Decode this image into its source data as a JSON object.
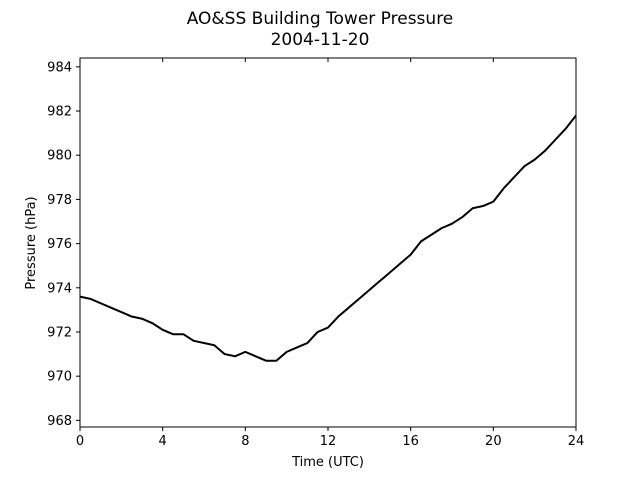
{
  "chart_data": {
    "type": "line",
    "title": "AO&SS Building Tower Pressure",
    "subtitle": "2004-11-20",
    "xlabel": "Time (UTC)",
    "ylabel": "Pressure (hPa)",
    "xlim": [
      0,
      24
    ],
    "ylim": [
      967.7,
      984.4
    ],
    "xticks": [
      0,
      4,
      8,
      12,
      16,
      20,
      24
    ],
    "yticks": [
      968,
      970,
      972,
      974,
      976,
      978,
      980,
      982,
      984
    ],
    "grid": false,
    "legend": "none",
    "series": [
      {
        "color": "#000000",
        "x": [
          0,
          0.5,
          1,
          1.5,
          2,
          2.5,
          3,
          3.5,
          4,
          4.5,
          5,
          5.5,
          6,
          6.5,
          7,
          7.5,
          8,
          8.5,
          9,
          9.5,
          10,
          10.5,
          11,
          11.5,
          12,
          12.5,
          13,
          13.5,
          14,
          14.5,
          15,
          15.5,
          16,
          16.5,
          17,
          17.5,
          18,
          18.5,
          19,
          19.5,
          20,
          20.5,
          21,
          21.5,
          22,
          22.5,
          23,
          23.5,
          24
        ],
        "y": [
          973.6,
          973.5,
          973.3,
          973.1,
          972.9,
          972.7,
          972.6,
          972.4,
          972.1,
          971.9,
          971.9,
          971.6,
          971.5,
          971.4,
          971.0,
          970.9,
          971.1,
          970.9,
          970.7,
          970.7,
          971.1,
          971.3,
          971.5,
          972.0,
          972.2,
          972.7,
          973.1,
          973.5,
          973.9,
          974.3,
          974.7,
          975.1,
          975.5,
          976.1,
          976.4,
          976.7,
          976.9,
          977.2,
          977.6,
          977.7,
          977.9,
          978.5,
          979.0,
          979.5,
          979.8,
          980.2,
          980.7,
          981.2,
          981.8
        ]
      }
    ]
  }
}
